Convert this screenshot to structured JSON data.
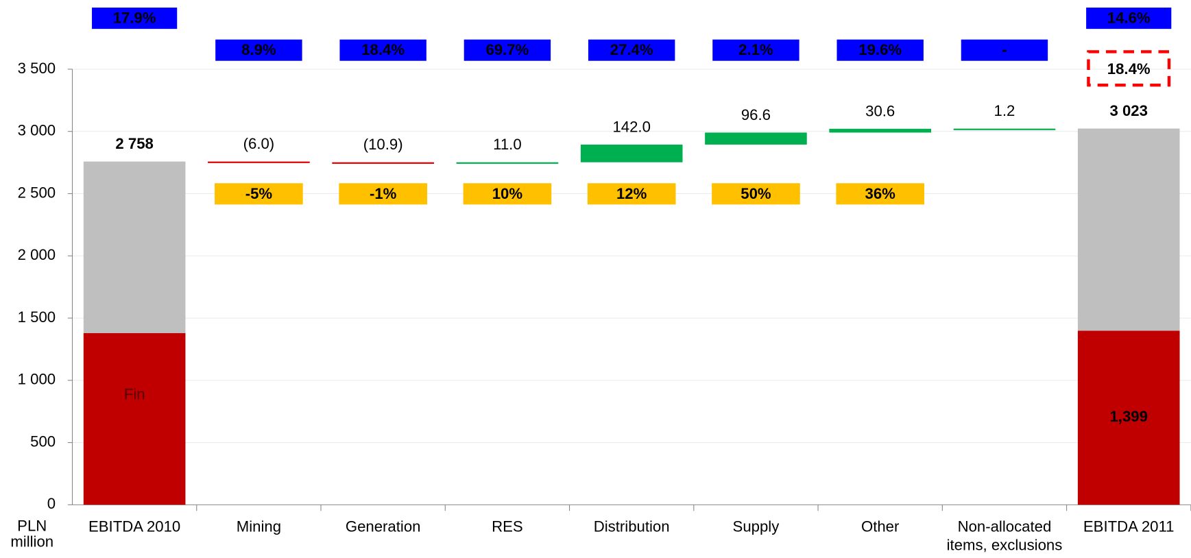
{
  "chart_data": {
    "type": "waterfall",
    "categories": [
      "EBITDA 2010",
      "Mining",
      "Generation",
      "RES",
      "Distribution",
      "Supply",
      "Other",
      "Non-allocated\nitems, exclusions",
      "EBITDA 2011"
    ],
    "y_label": [
      "PLN",
      "million"
    ],
    "ylim": [
      0,
      3500
    ],
    "yticks": [
      0,
      500,
      {
        "value": 1000,
        "label": "1 000"
      },
      {
        "value": 1500,
        "label": "1 500"
      },
      {
        "value": 2000,
        "label": "2 000"
      },
      {
        "value": 2500,
        "label": "2 500"
      },
      {
        "value": 3000,
        "label": "3 000"
      },
      {
        "value": 3500,
        "label": "3 500"
      }
    ],
    "grid": true,
    "series": [
      {
        "color": "#c00000",
        "values": [
          1380,
          null,
          null,
          null,
          null,
          null,
          null,
          null,
          1399
        ],
        "value_labels": [
          null,
          null,
          null,
          null,
          null,
          null,
          null,
          null,
          "1,399"
        ]
      },
      {
        "color": "#bfbfbf",
        "values": [
          1378,
          null,
          null,
          null,
          null,
          null,
          null,
          null,
          1624
        ]
      }
    ],
    "totals": {
      "value_labels": [
        "2 758",
        null,
        null,
        null,
        null,
        null,
        null,
        null,
        "3 023"
      ]
    },
    "changes": {
      "values": [
        null,
        -6.0,
        -10.9,
        11.0,
        142.0,
        96.6,
        30.6,
        1.2,
        null
      ],
      "value_labels": [
        null,
        "(6.0)",
        "(10.9)",
        "11.0",
        "142.0",
        "96.6",
        "30.6",
        "1.2",
        null
      ],
      "positive_color": "#00b050",
      "negative_color": "#e00000"
    },
    "margin_labels": [
      "17.9%",
      "8.9%",
      "18.4%",
      "69.7%",
      "27.4%",
      "2.1%",
      "19.6%",
      "-",
      "14.6%"
    ],
    "margin_color": "#0000ff",
    "growth_labels": [
      null,
      "-5%",
      "-1%",
      "10%",
      "12%",
      "50%",
      "36%",
      null,
      null
    ],
    "growth_color": "#ffc000",
    "highlight_label": "18.4%",
    "annotation": "Fin"
  }
}
